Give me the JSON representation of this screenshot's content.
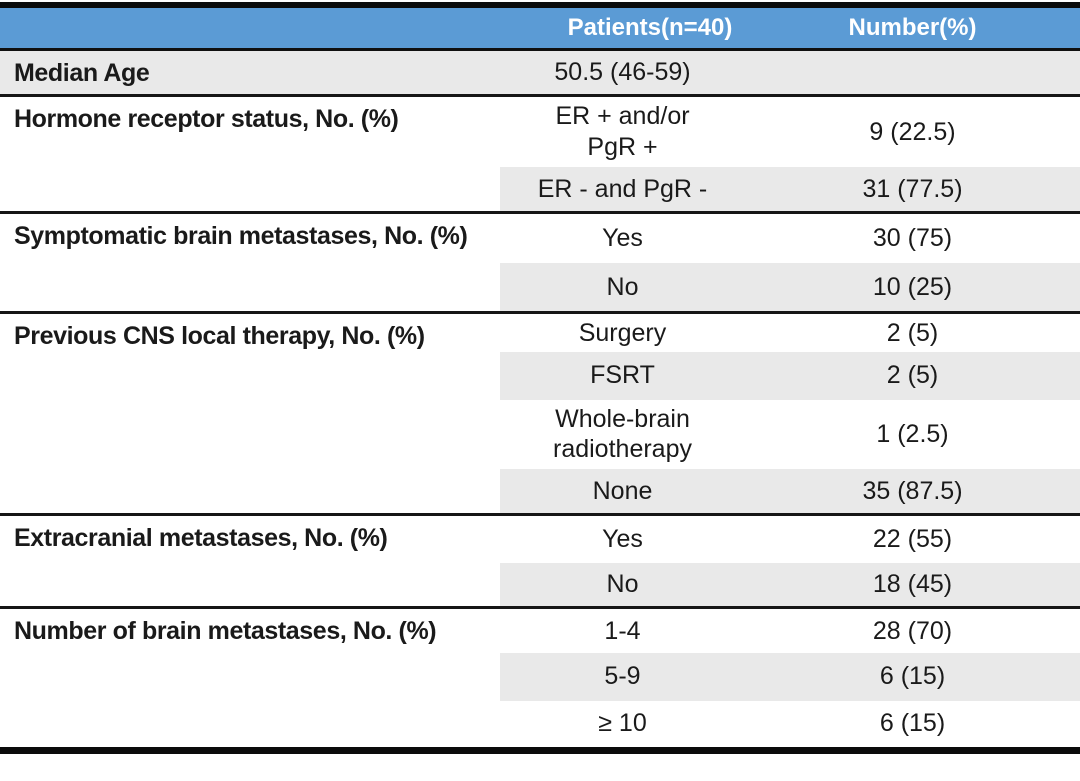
{
  "colors": {
    "header_bg": "#5b9bd5",
    "header_text": "#ffffff",
    "row_shade": "#e9e9e9",
    "rule": "#0b0b0b"
  },
  "table": {
    "header": {
      "label_col": "",
      "patients": "Patients(n=40)",
      "number": "Number(%)"
    },
    "sections": [
      {
        "label": "Median Age",
        "rows": [
          {
            "patients": "50.5 (46-59)",
            "number": ""
          }
        ]
      },
      {
        "label": "Hormone receptor status, No. (%)",
        "rows": [
          {
            "patients": "ER + and/or\nPgR +",
            "number": "9 (22.5)"
          },
          {
            "patients": "ER - and PgR -",
            "number": "31 (77.5)"
          }
        ]
      },
      {
        "label": "Symptomatic brain metastases, No. (%)",
        "rows": [
          {
            "patients": "Yes",
            "number": "30 (75)"
          },
          {
            "patients": "No",
            "number": "10 (25)"
          }
        ]
      },
      {
        "label": "Previous CNS local therapy, No. (%)",
        "rows": [
          {
            "patients": "Surgery",
            "number": "2 (5)"
          },
          {
            "patients": "FSRT",
            "number": "2 (5)"
          },
          {
            "patients": "Whole-brain\nradiotherapy",
            "number": "1 (2.5)"
          },
          {
            "patients": "None",
            "number": "35 (87.5)"
          }
        ]
      },
      {
        "label": "Extracranial metastases, No. (%)",
        "rows": [
          {
            "patients": "Yes",
            "number": "22 (55)"
          },
          {
            "patients": "No",
            "number": "18 (45)"
          }
        ]
      },
      {
        "label": "Number of brain metastases, No. (%)",
        "rows": [
          {
            "patients": "1-4",
            "number": "28 (70)"
          },
          {
            "patients": "5-9",
            "number": "6 (15)"
          },
          {
            "patients": "≥ 10",
            "number": "6 (15)"
          }
        ]
      }
    ]
  }
}
